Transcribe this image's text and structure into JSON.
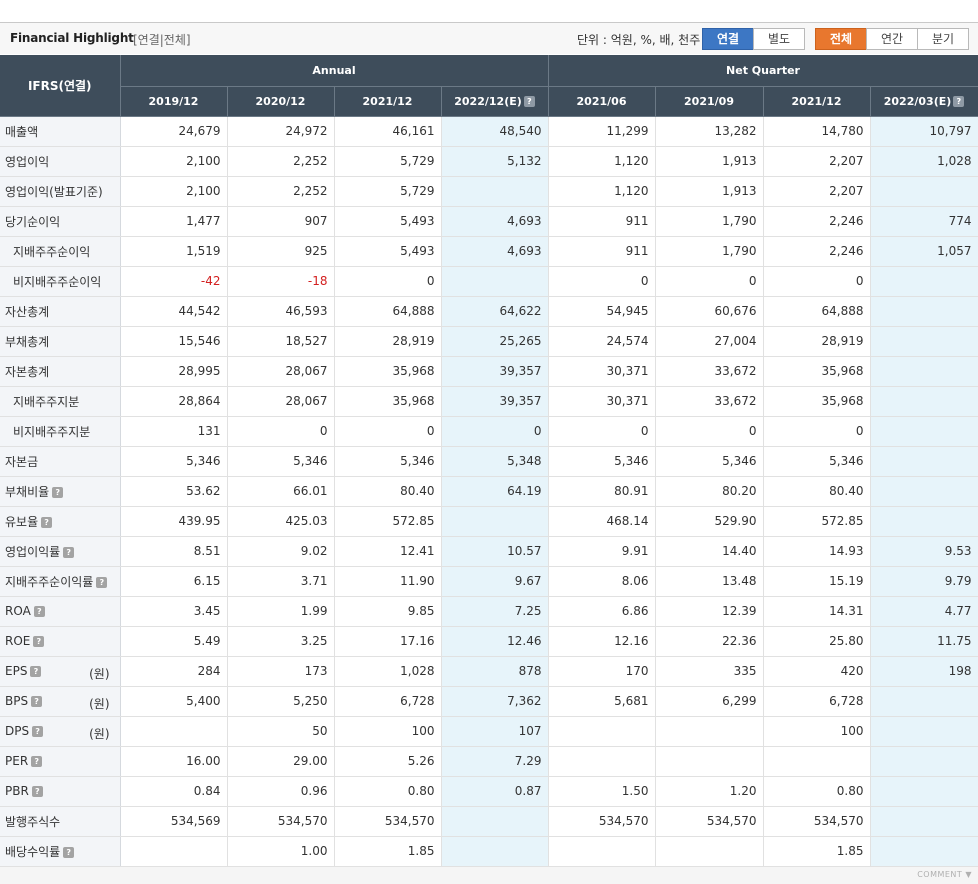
{
  "header": {
    "title": "Financial Highlight",
    "subtitle": "[연결|전체]",
    "unit": "단위 : 억원, %, 배, 천주",
    "buttons_scope": [
      "연결",
      "별도"
    ],
    "buttons_period": [
      "전체",
      "연간",
      "분기"
    ]
  },
  "table": {
    "corner": "IFRS(연결)",
    "group_annual": "Annual",
    "group_quarter": "Net Quarter",
    "columns": [
      "2019/12",
      "2020/12",
      "2021/12",
      "2022/12(E)",
      "2021/06",
      "2021/09",
      "2021/12",
      "2022/03(E)"
    ],
    "rows": [
      {
        "label": "매출액",
        "values": [
          "24,679",
          "24,972",
          "46,161",
          "48,540",
          "11,299",
          "13,282",
          "14,780",
          "10,797"
        ]
      },
      {
        "label": "영업이익",
        "values": [
          "2,100",
          "2,252",
          "5,729",
          "5,132",
          "1,120",
          "1,913",
          "2,207",
          "1,028"
        ]
      },
      {
        "label": "영업이익(발표기준)",
        "values": [
          "2,100",
          "2,252",
          "5,729",
          "",
          "1,120",
          "1,913",
          "2,207",
          ""
        ]
      },
      {
        "label": "당기순이익",
        "values": [
          "1,477",
          "907",
          "5,493",
          "4,693",
          "911",
          "1,790",
          "2,246",
          "774"
        ]
      },
      {
        "label": "지배주주순이익",
        "values": [
          "1,519",
          "925",
          "5,493",
          "4,693",
          "911",
          "1,790",
          "2,246",
          "1,057"
        ]
      },
      {
        "label": "비지배주주순이익",
        "values": [
          "-42",
          "-18",
          "0",
          "",
          "0",
          "0",
          "0",
          ""
        ]
      },
      {
        "label": "자산총계",
        "values": [
          "44,542",
          "46,593",
          "64,888",
          "64,622",
          "54,945",
          "60,676",
          "64,888",
          ""
        ]
      },
      {
        "label": "부채총계",
        "values": [
          "15,546",
          "18,527",
          "28,919",
          "25,265",
          "24,574",
          "27,004",
          "28,919",
          ""
        ]
      },
      {
        "label": "자본총계",
        "values": [
          "28,995",
          "28,067",
          "35,968",
          "39,357",
          "30,371",
          "33,672",
          "35,968",
          ""
        ]
      },
      {
        "label": "지배주주지분",
        "values": [
          "28,864",
          "28,067",
          "35,968",
          "39,357",
          "30,371",
          "33,672",
          "35,968",
          ""
        ]
      },
      {
        "label": "비지배주주지분",
        "values": [
          "131",
          "0",
          "0",
          "0",
          "0",
          "0",
          "0",
          ""
        ]
      },
      {
        "label": "자본금",
        "values": [
          "5,346",
          "5,346",
          "5,346",
          "5,348",
          "5,346",
          "5,346",
          "5,346",
          ""
        ]
      },
      {
        "label": "부채비율",
        "values": [
          "53.62",
          "66.01",
          "80.40",
          "64.19",
          "80.91",
          "80.20",
          "80.40",
          ""
        ]
      },
      {
        "label": "유보율",
        "values": [
          "439.95",
          "425.03",
          "572.85",
          "",
          "468.14",
          "529.90",
          "572.85",
          ""
        ]
      },
      {
        "label": "영업이익률",
        "values": [
          "8.51",
          "9.02",
          "12.41",
          "10.57",
          "9.91",
          "14.40",
          "14.93",
          "9.53"
        ]
      },
      {
        "label": "지배주주순이익률",
        "values": [
          "6.15",
          "3.71",
          "11.90",
          "9.67",
          "8.06",
          "13.48",
          "15.19",
          "9.79"
        ]
      },
      {
        "label": "ROA",
        "values": [
          "3.45",
          "1.99",
          "9.85",
          "7.25",
          "6.86",
          "12.39",
          "14.31",
          "4.77"
        ]
      },
      {
        "label": "ROE",
        "values": [
          "5.49",
          "3.25",
          "17.16",
          "12.46",
          "12.16",
          "22.36",
          "25.80",
          "11.75"
        ]
      },
      {
        "label": "EPS",
        "unit": "(원)",
        "values": [
          "284",
          "173",
          "1,028",
          "878",
          "170",
          "335",
          "420",
          "198"
        ]
      },
      {
        "label": "BPS",
        "unit": "(원)",
        "values": [
          "5,400",
          "5,250",
          "6,728",
          "7,362",
          "5,681",
          "6,299",
          "6,728",
          ""
        ]
      },
      {
        "label": "DPS",
        "unit": "(원)",
        "values": [
          "",
          "50",
          "100",
          "107",
          "",
          "",
          "100",
          ""
        ]
      },
      {
        "label": "PER",
        "values": [
          "16.00",
          "29.00",
          "5.26",
          "7.29",
          "",
          "",
          "",
          ""
        ]
      },
      {
        "label": "PBR",
        "values": [
          "0.84",
          "0.96",
          "0.80",
          "0.87",
          "1.50",
          "1.20",
          "0.80",
          ""
        ]
      },
      {
        "label": "발행주식수",
        "values": [
          "534,569",
          "534,570",
          "534,570",
          "",
          "534,570",
          "534,570",
          "534,570",
          ""
        ]
      },
      {
        "label": "배당수익률",
        "values": [
          "",
          "1.00",
          "1.85",
          "",
          "",
          "",
          "1.85",
          ""
        ]
      }
    ]
  },
  "footer": {
    "comment": "COMMENT ▼"
  },
  "colors": {
    "header_bg": "#3e4d5b",
    "estimate_bg": "#e7f4fa",
    "negative": "#d32020",
    "scope_selected": "#3d77c4",
    "period_selected": "#e8772e"
  }
}
